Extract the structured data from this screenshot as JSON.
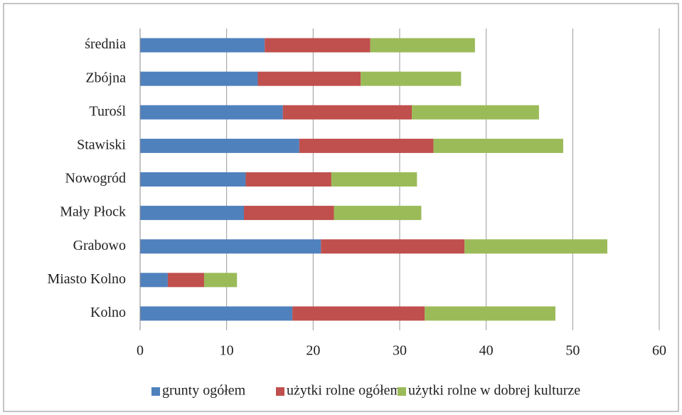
{
  "chart_data": {
    "type": "stacked-barh",
    "categories": [
      "Kolno",
      "Miasto Kolno",
      "Grabowo",
      "Mały Płock",
      "Nowogród",
      "Stawiski",
      "Turośl",
      "Zbójna",
      "średnia"
    ],
    "series": [
      {
        "name": "grunty ogółem",
        "color": "#4f81bd",
        "values": [
          17.6,
          3.2,
          20.9,
          12.0,
          12.2,
          18.4,
          16.5,
          13.6,
          14.4
        ]
      },
      {
        "name": "użytki rolne ogółem",
        "color": "#c0504d",
        "values": [
          15.3,
          4.2,
          16.6,
          10.4,
          9.9,
          15.5,
          14.9,
          11.9,
          12.2
        ]
      },
      {
        "name": "użytki rolne w dobrej kulturze",
        "color": "#9bbb59",
        "values": [
          15.1,
          3.8,
          16.5,
          10.1,
          9.9,
          15.0,
          14.7,
          11.6,
          12.1
        ]
      }
    ],
    "xlim": [
      0,
      60
    ],
    "xticks": [
      0,
      10,
      20,
      30,
      40,
      50,
      60
    ],
    "grid": true,
    "legend": "bottom"
  }
}
